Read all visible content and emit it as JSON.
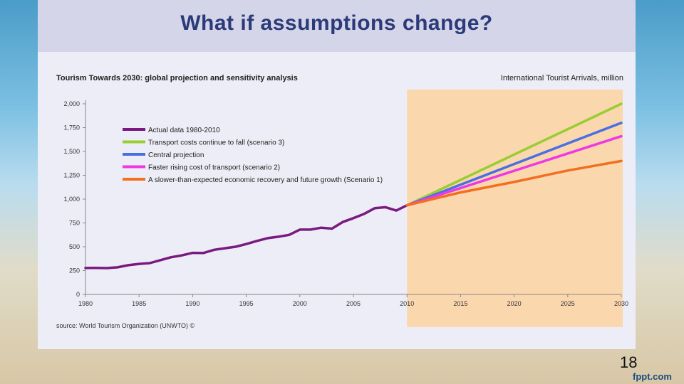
{
  "slide": {
    "title": "What if assumptions change?",
    "slide_number": "18",
    "brand": "fppt.com"
  },
  "figure": {
    "title": "Tourism Towards 2030: global projection and sensitivity analysis",
    "unit_label": "International Tourist Arrivals, million",
    "source": "source: World Tourism Organization (UNWTO) ©"
  },
  "colors": {
    "actual": "#7a1a80",
    "scenario3": "#9acd32",
    "central": "#4a6fe3",
    "scenario2": "#ee38e6",
    "scenario1": "#f26f1f",
    "projection_shade": "#fbd7ae"
  },
  "chart_data": {
    "type": "line",
    "title": "Tourism Towards 2030: global projection and sensitivity analysis",
    "ylabel": "International Tourist Arrivals, million",
    "xlim": [
      1980,
      2030
    ],
    "ylim": [
      0,
      2000
    ],
    "yticks": [
      0,
      250,
      500,
      750,
      1000,
      1250,
      1500,
      1750,
      2000
    ],
    "ytick_labels": [
      "0",
      "250",
      "500",
      "750",
      "1,000",
      "1,250",
      "1,500",
      "1,750",
      "2,000"
    ],
    "xticks": [
      1980,
      1985,
      1990,
      1995,
      2000,
      2005,
      2010,
      2015,
      2020,
      2025,
      2030
    ],
    "xtick_labels": [
      "1980",
      "1985",
      "1990",
      "1995",
      "2000",
      "2005",
      "2010",
      "2015",
      "2020",
      "2025",
      "2030"
    ],
    "shaded_region": [
      2010,
      2030
    ],
    "series": [
      {
        "name": "Actual data 1980-2010",
        "color_key": "actual",
        "x": [
          1980,
          1981,
          1982,
          1983,
          1984,
          1985,
          1986,
          1987,
          1988,
          1989,
          1990,
          1991,
          1992,
          1993,
          1994,
          1995,
          1996,
          1997,
          1998,
          1999,
          2000,
          2001,
          2002,
          2003,
          2004,
          2005,
          2006,
          2007,
          2008,
          2009,
          2010
        ],
        "y": [
          277,
          278,
          276,
          284,
          307,
          320,
          328,
          360,
          390,
          410,
          436,
          434,
          468,
          484,
          500,
          528,
          561,
          590,
          605,
          625,
          680,
          680,
          700,
          690,
          760,
          800,
          845,
          905,
          915,
          880,
          935
        ]
      },
      {
        "name": "Transport costs continue to fall (scenario 3)",
        "color_key": "scenario3",
        "x": [
          2010,
          2030
        ],
        "y": [
          935,
          2000
        ]
      },
      {
        "name": "Central projection",
        "color_key": "central",
        "x": [
          2010,
          2030
        ],
        "y": [
          935,
          1800
        ]
      },
      {
        "name": "Faster rising cost of transport (scenario 2)",
        "color_key": "scenario2",
        "x": [
          2010,
          2030
        ],
        "y": [
          935,
          1660
        ]
      },
      {
        "name": "A slower-than-expected economic recovery and future growth (Scenario 1)",
        "color_key": "scenario1",
        "x": [
          2010,
          2015,
          2020,
          2025,
          2030
        ],
        "y": [
          935,
          1070,
          1180,
          1300,
          1400
        ]
      }
    ]
  }
}
